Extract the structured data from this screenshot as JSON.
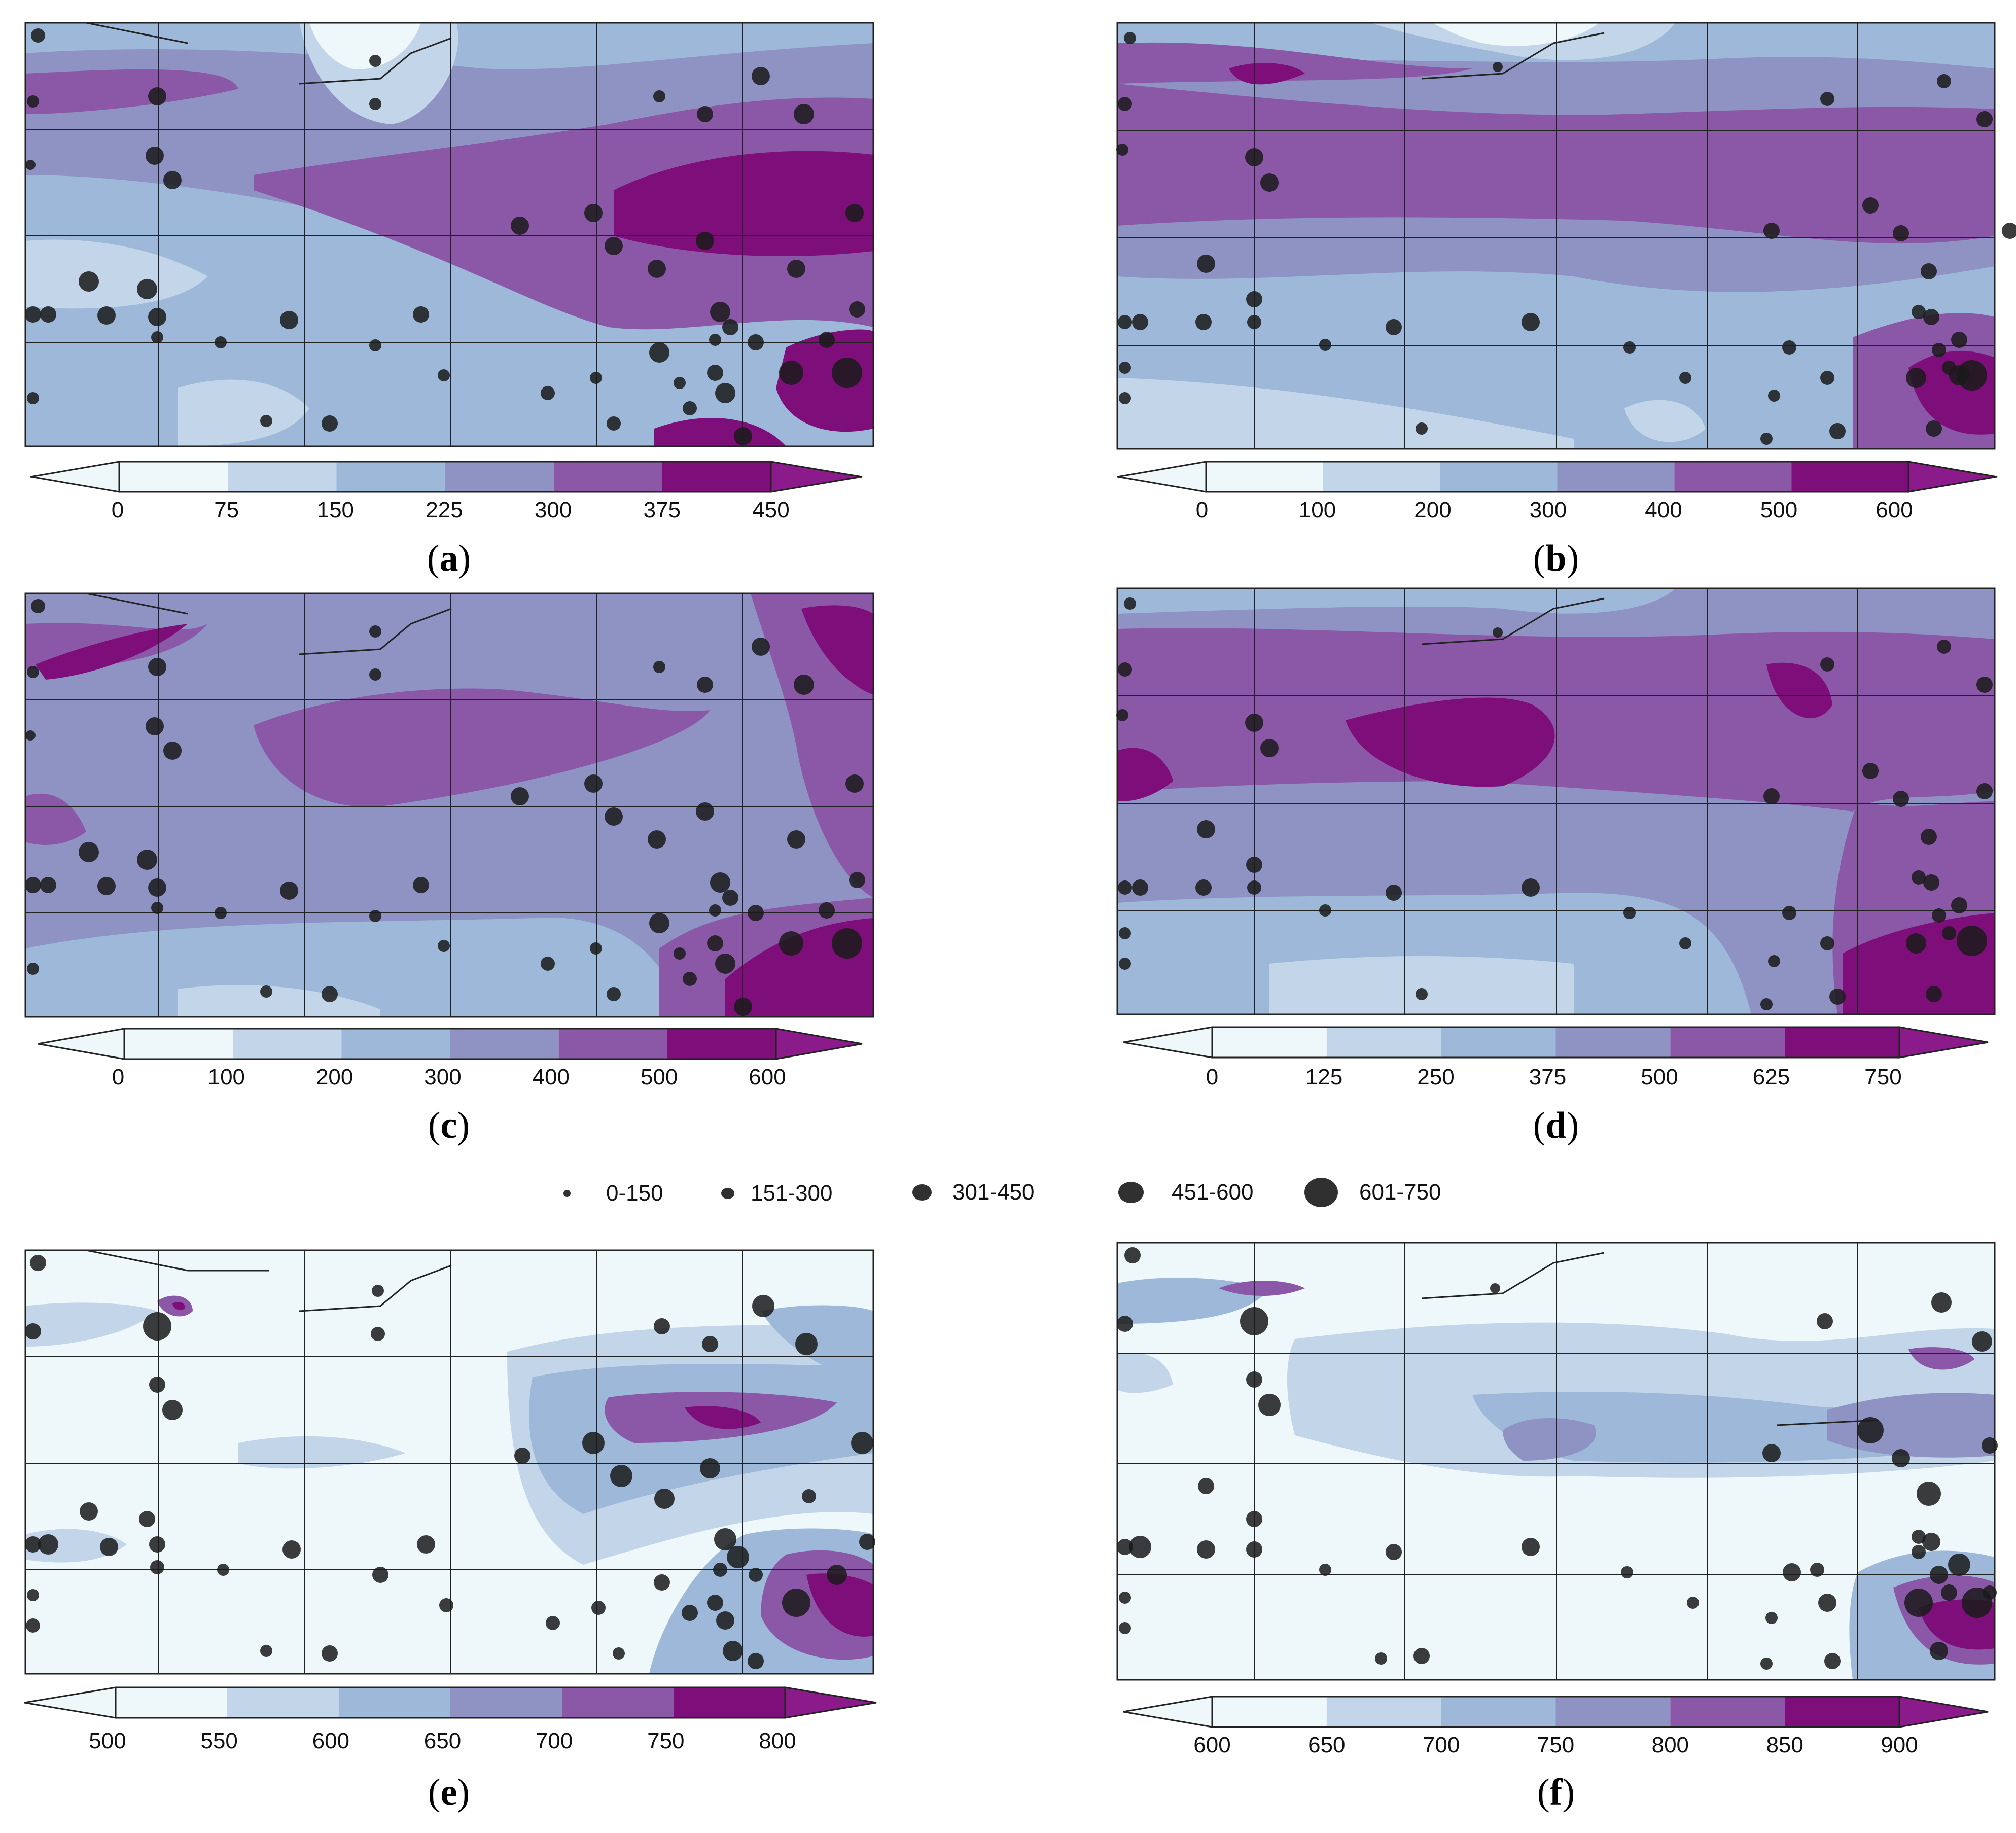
{
  "figure": {
    "panels": [
      {
        "id": "a",
        "label": "a",
        "ticks": [
          "0",
          "75",
          "150",
          "225",
          "300",
          "375",
          "450"
        ],
        "colors": [
          "#eef7fa",
          "#c3d5e8",
          "#9db8d8",
          "#8e93c4",
          "#8b58a8",
          "#7e0f7a"
        ]
      },
      {
        "id": "b",
        "label": "b",
        "ticks": [
          "0",
          "100",
          "200",
          "300",
          "400",
          "500",
          "600"
        ],
        "colors": [
          "#eef7fa",
          "#c3d5e8",
          "#9db8d8",
          "#8e93c4",
          "#8b58a8",
          "#7e0f7a"
        ]
      },
      {
        "id": "c",
        "label": "c",
        "ticks": [
          "0",
          "100",
          "200",
          "300",
          "400",
          "500",
          "600"
        ],
        "colors": [
          "#eef7fa",
          "#c3d5e8",
          "#9db8d8",
          "#8e93c4",
          "#8b58a8",
          "#7e0f7a"
        ]
      },
      {
        "id": "d",
        "label": "d",
        "ticks": [
          "0",
          "125",
          "250",
          "375",
          "500",
          "625",
          "750"
        ],
        "colors": [
          "#eef7fa",
          "#c3d5e8",
          "#9db8d8",
          "#8e93c4",
          "#8b58a8",
          "#7e0f7a"
        ]
      },
      {
        "id": "e",
        "label": "e",
        "ticks": [
          "500",
          "550",
          "600",
          "650",
          "700",
          "750",
          "800"
        ],
        "colors": [
          "#eef7fa",
          "#c3d5e8",
          "#9db8d8",
          "#8e93c4",
          "#8b58a8",
          "#7e0f7a"
        ]
      },
      {
        "id": "f",
        "label": "f",
        "ticks": [
          "600",
          "650",
          "700",
          "750",
          "800",
          "850",
          "900"
        ],
        "colors": [
          "#eef7fa",
          "#c3d5e8",
          "#9db8d8",
          "#8e93c4",
          "#8b58a8",
          "#7e0f7a"
        ]
      }
    ],
    "size_legend": [
      "0-150",
      "151-300",
      "301-450",
      "451-600",
      "601-750"
    ],
    "colors": {
      "station_fill": "#1a1a1a",
      "grid_line": "#222222",
      "arrow_low": "#eef7fa",
      "arrow_high": "#8b1a8a"
    }
  }
}
